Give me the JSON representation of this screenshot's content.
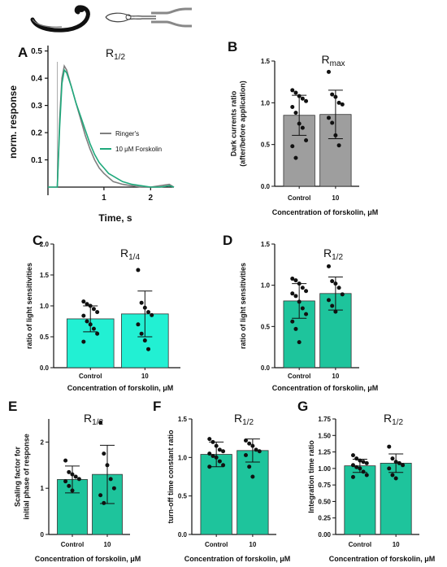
{
  "panel_labels": [
    "A",
    "B",
    "C",
    "D",
    "E",
    "F",
    "G"
  ],
  "chart_data": [
    {
      "id": "A",
      "type": "line",
      "title": {
        "main": "R",
        "sub": "1/2"
      },
      "xlabel": "Time, s",
      "ylabel": "norm. response",
      "xlim": [
        -0.2,
        2.5
      ],
      "ylim": [
        -0.03,
        0.52
      ],
      "xticks": [
        1,
        2
      ],
      "yticks": [
        0.1,
        0.2,
        0.3,
        0.4,
        0.5
      ],
      "legend_position": "right",
      "series": [
        {
          "name": "Ringer's",
          "color": "#7f7f7f",
          "x": [
            -0.2,
            -0.1,
            0,
            0.05,
            0.1,
            0.15,
            0.2,
            0.3,
            0.4,
            0.5,
            0.6,
            0.7,
            0.8,
            0.9,
            1.0,
            1.1,
            1.2,
            1.3,
            1.4,
            1.6,
            1.8,
            2.0,
            2.2,
            2.4,
            2.5
          ],
          "y": [
            0.0,
            0.0,
            0.0,
            0.25,
            0.4,
            0.445,
            0.43,
            0.37,
            0.31,
            0.25,
            0.19,
            0.14,
            0.1,
            0.07,
            0.05,
            0.035,
            0.02,
            0.015,
            0.01,
            0.005,
            0.0,
            0.0,
            0.005,
            0.01,
            0.0
          ]
        },
        {
          "name": "10 μM Forskolin",
          "color": "#1fa97c",
          "x": [
            -0.2,
            -0.1,
            0,
            0.05,
            0.1,
            0.15,
            0.2,
            0.3,
            0.4,
            0.5,
            0.6,
            0.7,
            0.8,
            0.9,
            1.0,
            1.1,
            1.2,
            1.3,
            1.4,
            1.6,
            1.8,
            2.0,
            2.2,
            2.4,
            2.5
          ],
          "y": [
            0.0,
            0.0,
            0.0,
            0.22,
            0.38,
            0.43,
            0.42,
            0.37,
            0.31,
            0.26,
            0.21,
            0.16,
            0.12,
            0.09,
            0.07,
            0.05,
            0.04,
            0.03,
            0.02,
            0.01,
            0.005,
            0.0,
            0.0,
            0.005,
            0.0
          ]
        }
      ]
    },
    {
      "id": "B",
      "type": "bar",
      "title": {
        "main": "R",
        "sub": "max"
      },
      "xlabel": "Concentration of forskolin, μM",
      "ylabel": [
        "Dark currents ratio",
        "(after/before application)"
      ],
      "categories": [
        "Control",
        "10"
      ],
      "values": [
        0.85,
        0.86
      ],
      "sd": [
        0.24,
        0.29
      ],
      "bar_color": "#9e9e9e",
      "ylim": [
        0,
        1.5
      ],
      "yticks": [
        0.0,
        0.5,
        1.0,
        1.5
      ],
      "points": [
        [
          1.15,
          1.12,
          1.08,
          1.05,
          1.02,
          0.95,
          0.88,
          0.75,
          0.7,
          0.55,
          0.48,
          0.34
        ],
        [
          1.37,
          1.1,
          1.07,
          1.0,
          0.98,
          0.82,
          0.76,
          0.61,
          0.49
        ]
      ]
    },
    {
      "id": "C",
      "type": "bar",
      "title": {
        "main": "R",
        "sub": "1/4"
      },
      "xlabel": "Concentration of forskolin, μM",
      "ylabel": "ratio of light sensitivities",
      "categories": [
        "Control",
        "10"
      ],
      "values": [
        0.79,
        0.87
      ],
      "sd": [
        0.21,
        0.37
      ],
      "bar_color": "#22f0d3",
      "ylim": [
        0,
        2.0
      ],
      "yticks": [
        0.0,
        0.5,
        1.0,
        1.5,
        2.0
      ],
      "points": [
        [
          1.07,
          1.03,
          1.0,
          0.95,
          0.9,
          0.84,
          0.75,
          0.7,
          0.63,
          0.55,
          0.42
        ],
        [
          1.58,
          1.05,
          0.97,
          0.9,
          0.85,
          0.7,
          0.55,
          0.44,
          0.3
        ]
      ]
    },
    {
      "id": "D",
      "type": "bar",
      "title": {
        "main": "R",
        "sub": "1/2"
      },
      "xlabel": "Concentration of forskolin, μM",
      "ylabel": "ratio of light sensitivities",
      "categories": [
        "Control",
        "10"
      ],
      "values": [
        0.81,
        0.9
      ],
      "sd": [
        0.21,
        0.2
      ],
      "bar_color": "#1ec49c",
      "ylim": [
        0,
        1.5
      ],
      "yticks": [
        0.0,
        0.5,
        1.0,
        1.5
      ],
      "points": [
        [
          1.08,
          1.06,
          1.02,
          0.97,
          0.93,
          0.9,
          0.87,
          0.8,
          0.72,
          0.65,
          0.56,
          0.47,
          0.31
        ],
        [
          1.23,
          1.05,
          1.02,
          0.97,
          0.89,
          0.82,
          0.75,
          0.68
        ]
      ]
    },
    {
      "id": "E",
      "type": "bar",
      "title": {
        "main": "R",
        "sub": "1/2"
      },
      "xlabel": "Concentration of forskolin, μM",
      "ylabel": [
        "Scaling factor for",
        "initial phase of response"
      ],
      "categories": [
        "Control",
        "10"
      ],
      "values": [
        1.19,
        1.3
      ],
      "sd": [
        0.29,
        0.63
      ],
      "bar_color": "#1ec49c",
      "ylim": [
        0,
        2.5
      ],
      "yticks": [
        0,
        1,
        2
      ],
      "points": [
        [
          1.6,
          1.35,
          1.3,
          1.25,
          1.2,
          1.15,
          1.05,
          0.95
        ],
        [
          2.42,
          1.75,
          1.5,
          1.2,
          1.0,
          0.85,
          0.68
        ]
      ]
    },
    {
      "id": "F",
      "type": "bar",
      "title": {
        "main": "R",
        "sub": "1/2"
      },
      "xlabel": "Concentration of forskolin, μM",
      "ylabel": "turn-off time constant ratio",
      "categories": [
        "Control",
        "10"
      ],
      "values": [
        1.04,
        1.09
      ],
      "sd": [
        0.16,
        0.15
      ],
      "bar_color": "#1ec49c",
      "ylim": [
        0,
        1.5
      ],
      "yticks": [
        0.0,
        0.5,
        1.0,
        1.5
      ],
      "points": [
        [
          1.24,
          1.2,
          1.15,
          1.1,
          1.08,
          1.05,
          1.02,
          1.0,
          0.95,
          0.9,
          0.88
        ],
        [
          1.22,
          1.18,
          1.15,
          1.1,
          1.08,
          1.03,
          0.88,
          0.75
        ]
      ]
    },
    {
      "id": "G",
      "type": "bar",
      "title": {
        "main": "R",
        "sub": "1/2"
      },
      "xlabel": "Concentration of forskolin, μM",
      "ylabel": "Integration time ratio",
      "categories": [
        "Control",
        "10"
      ],
      "values": [
        1.04,
        1.08
      ],
      "sd": [
        0.1,
        0.14
      ],
      "bar_color": "#1ec49c",
      "ylim": [
        0,
        1.75
      ],
      "yticks": [
        0.0,
        0.25,
        0.5,
        0.75,
        1.0,
        1.25,
        1.5,
        1.75
      ],
      "points": [
        [
          1.2,
          1.15,
          1.12,
          1.1,
          1.08,
          1.05,
          1.02,
          1.0,
          0.95,
          0.9,
          0.87
        ],
        [
          1.33,
          1.15,
          1.1,
          1.08,
          1.05,
          1.0,
          0.9,
          0.85
        ]
      ]
    }
  ]
}
